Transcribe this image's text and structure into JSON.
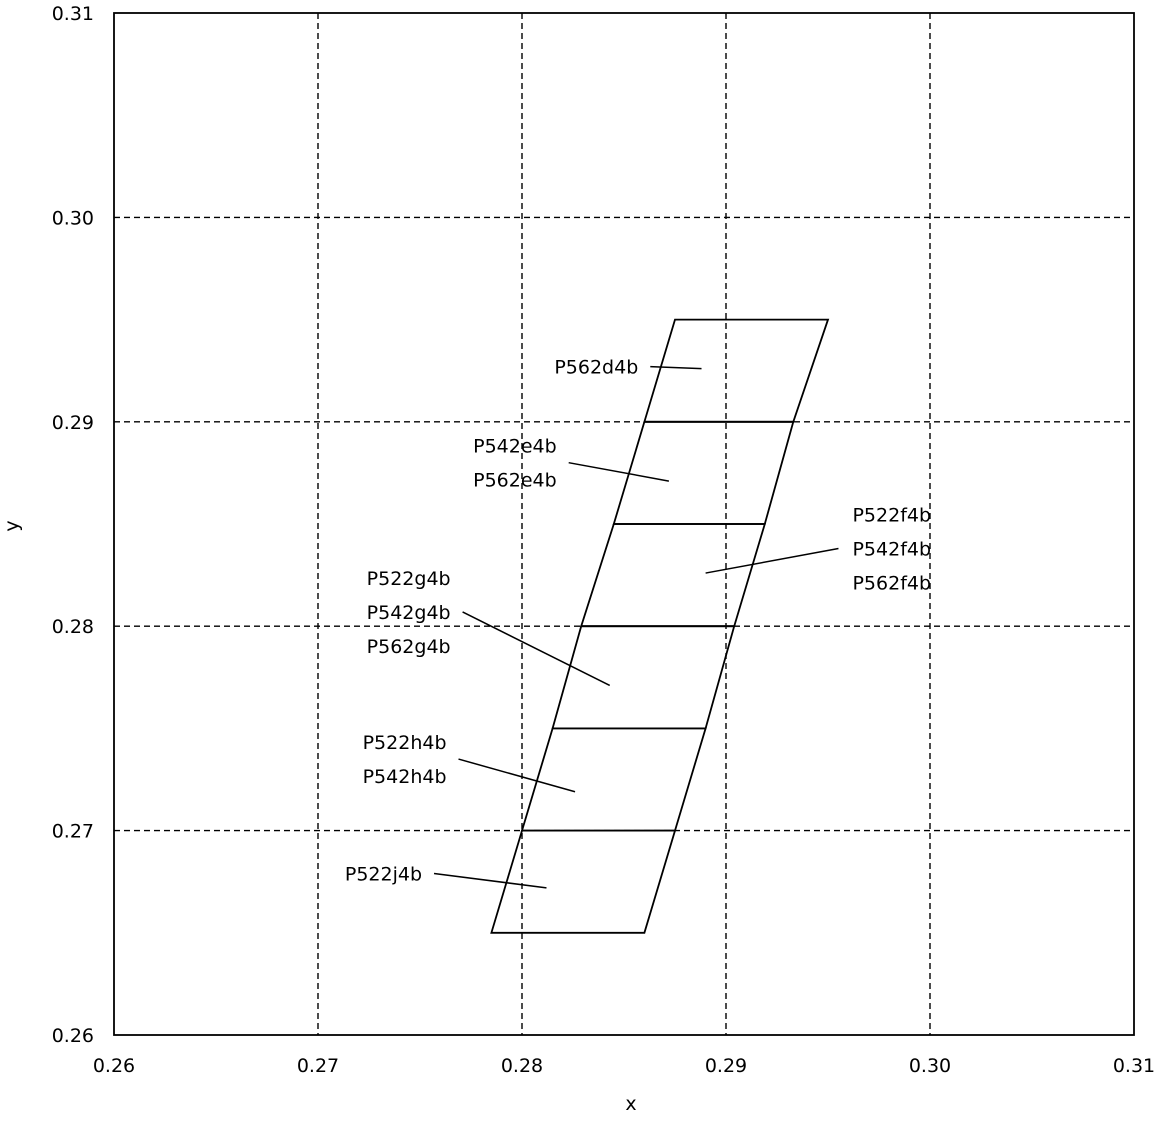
{
  "chart_data": {
    "type": "diagram",
    "xlabel": "x",
    "ylabel": "y",
    "xlim": [
      0.26,
      0.31
    ],
    "ylim": [
      0.26,
      0.31
    ],
    "x_ticks": [
      "0.26",
      "0.27",
      "0.28",
      "0.29",
      "0.30",
      "0.31"
    ],
    "y_ticks": [
      "0.26",
      "0.27",
      "0.28",
      "0.29",
      "0.30",
      "0.31"
    ],
    "grid": true,
    "bins": [
      {
        "id": "d",
        "corners": [
          [
            0.2875,
            0.295
          ],
          [
            0.295,
            0.295
          ],
          [
            0.2933,
            0.29
          ],
          [
            0.286,
            0.29
          ]
        ]
      },
      {
        "id": "e",
        "corners": [
          [
            0.286,
            0.29
          ],
          [
            0.2933,
            0.29
          ],
          [
            0.2919,
            0.285
          ],
          [
            0.2845,
            0.285
          ]
        ]
      },
      {
        "id": "f",
        "corners": [
          [
            0.2845,
            0.285
          ],
          [
            0.2919,
            0.285
          ],
          [
            0.2904,
            0.28
          ],
          [
            0.2829,
            0.28
          ]
        ]
      },
      {
        "id": "g",
        "corners": [
          [
            0.2829,
            0.28
          ],
          [
            0.2904,
            0.28
          ],
          [
            0.289,
            0.275
          ],
          [
            0.2815,
            0.275
          ]
        ]
      },
      {
        "id": "h",
        "corners": [
          [
            0.2815,
            0.275
          ],
          [
            0.289,
            0.275
          ],
          [
            0.2875,
            0.27
          ],
          [
            0.28,
            0.27
          ]
        ]
      },
      {
        "id": "j",
        "corners": [
          [
            0.28,
            0.27
          ],
          [
            0.2875,
            0.27
          ],
          [
            0.286,
            0.265
          ],
          [
            0.2785,
            0.265
          ]
        ]
      }
    ],
    "annotations": [
      {
        "lines": [
          "P562d4b"
        ],
        "point": [
          0.2888,
          0.2926
        ],
        "text_at": [
          0.2857,
          0.2927
        ],
        "anchor": "end"
      },
      {
        "lines": [
          "P542e4b",
          "P562e4b"
        ],
        "point": [
          0.2872,
          0.2871
        ],
        "text_at": [
          0.2817,
          0.288
        ],
        "anchor": "end"
      },
      {
        "lines": [
          "P522f4b",
          "P542f4b",
          "P562f4b"
        ],
        "point": [
          0.289,
          0.2826
        ],
        "text_at": [
          0.2962,
          0.2838
        ],
        "anchor": "start"
      },
      {
        "lines": [
          "P522g4b",
          "P542g4b",
          "P562g4b"
        ],
        "point": [
          0.2843,
          0.2771
        ],
        "text_at": [
          0.2765,
          0.2807
        ],
        "anchor": "end"
      },
      {
        "lines": [
          "P522h4b",
          "P542h4b"
        ],
        "point": [
          0.2826,
          0.2719
        ],
        "text_at": [
          0.2763,
          0.2735
        ],
        "anchor": "end"
      },
      {
        "lines": [
          "P522j4b"
        ],
        "point": [
          0.2812,
          0.2672
        ],
        "text_at": [
          0.2751,
          0.2679
        ],
        "anchor": "end"
      }
    ]
  }
}
